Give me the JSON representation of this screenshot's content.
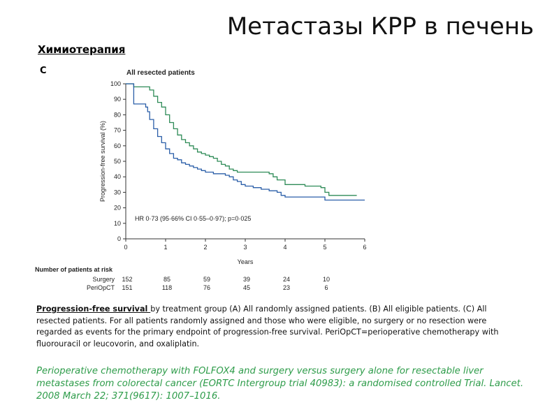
{
  "slide": {
    "title": "Метастазы КРР в печень",
    "subtitle": "Химиотерапия",
    "panel_letter": "C"
  },
  "chart_data": {
    "type": "line",
    "title": "All resected patients",
    "xlabel": "Years",
    "ylabel": "Progression-free survival (%)",
    "xlim": [
      0,
      6
    ],
    "ylim": [
      0,
      100
    ],
    "xticks": [
      0,
      1,
      2,
      3,
      4,
      5,
      6
    ],
    "yticks": [
      0,
      10,
      20,
      30,
      40,
      50,
      60,
      70,
      80,
      90,
      100
    ],
    "grid": false,
    "annotation": "HR 0·73 (95·66% CI 0·55–0·97); p=0·025",
    "series": [
      {
        "name": "PeriOpCT",
        "color": "#2e8b57",
        "x": [
          0,
          0.2,
          0.2,
          0.55,
          0.6,
          0.7,
          0.8,
          0.9,
          1.0,
          1.1,
          1.2,
          1.3,
          1.4,
          1.5,
          1.6,
          1.7,
          1.8,
          1.9,
          2.0,
          2.1,
          2.2,
          2.3,
          2.4,
          2.5,
          2.6,
          2.7,
          2.8,
          3.0,
          3.2,
          3.4,
          3.6,
          3.7,
          3.8,
          4.0,
          4.2,
          4.5,
          4.9,
          5.0,
          5.1,
          5.8
        ],
        "y": [
          100,
          100,
          98,
          98,
          96,
          92,
          88,
          85,
          80,
          75,
          71,
          67,
          64,
          62,
          60,
          58,
          56,
          55,
          54,
          53,
          52,
          50,
          48,
          47,
          45,
          44,
          43,
          43,
          43,
          43,
          42,
          40,
          38,
          35,
          35,
          34,
          33,
          30,
          28,
          28
        ]
      },
      {
        "name": "Surgery",
        "color": "#2a5ea8",
        "x": [
          0,
          0.2,
          0.2,
          0.45,
          0.5,
          0.55,
          0.6,
          0.7,
          0.8,
          0.9,
          1.0,
          1.1,
          1.2,
          1.3,
          1.4,
          1.5,
          1.6,
          1.7,
          1.8,
          1.9,
          2.0,
          2.1,
          2.2,
          2.3,
          2.5,
          2.6,
          2.7,
          2.8,
          2.9,
          3.0,
          3.2,
          3.4,
          3.6,
          3.8,
          3.9,
          4.0,
          4.3,
          4.6,
          4.9,
          5.0,
          5.5,
          6.0
        ],
        "y": [
          100,
          100,
          87,
          87,
          85,
          82,
          77,
          71,
          66,
          62,
          58,
          55,
          52,
          51,
          49,
          48,
          47,
          46,
          45,
          44,
          43,
          43,
          42,
          42,
          41,
          40,
          38,
          37,
          35,
          34,
          33,
          32,
          31,
          30,
          28,
          27,
          27,
          27,
          27,
          25,
          25,
          25
        ]
      }
    ],
    "risk_table": {
      "title": "Number of patients at risk",
      "years": [
        0,
        1,
        2,
        3,
        4,
        5
      ],
      "rows": [
        {
          "label": "Surgery",
          "values": [
            "152",
            "85",
            "59",
            "39",
            "24",
            "10"
          ]
        },
        {
          "label": "PeriOpCT",
          "values": [
            "151",
            "118",
            "76",
            "45",
            "23",
            "6"
          ]
        }
      ]
    }
  },
  "caption": {
    "lead": "Progression-free survival ",
    "text": "by treatment  group (A) All randomly assigned patients. (B) All eligible patients. (C) All resected patients. For all patients randomly assigned and those who were  eligible, no surgery or no resection were regarded as events for the  primary endpoint of progression-free survival. PeriOpCT=perioperative chemotherapy with fluorouracil or leucovorin, and oxaliplatin."
  },
  "reference": "Perioperative chemotherapy with FOLFOX4 and surgery versus surgery alone for resectable liver metastases from colorectal cancer (EORTC Intergroup trial 40983): a randomised controlled Trial. Lancet. 2008 March 22; 371(9617): 1007–1016."
}
